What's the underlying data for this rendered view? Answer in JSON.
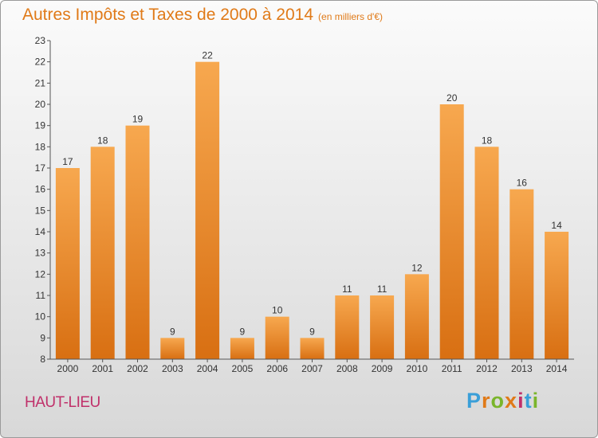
{
  "header": {
    "title": "Autres Impôts et Taxes de 2000 à 2014",
    "subtitle": "(en milliers d'€)"
  },
  "footer": {
    "place": "HAUT-LIEU",
    "logo": "Proxiti",
    "logo_colors": [
      "#3a9fd8",
      "#e07a18",
      "#7ab52b",
      "#e07a18",
      "#c0306a",
      "#3a9fd8",
      "#7ab52b"
    ]
  },
  "colors": {
    "bar_top": "#f7a84f",
    "bar_bottom": "#d86f12",
    "text": "#e07a18",
    "axis": "#555555"
  },
  "chart_data": {
    "type": "bar",
    "categories": [
      "2000",
      "2001",
      "2002",
      "2003",
      "2004",
      "2005",
      "2006",
      "2007",
      "2008",
      "2009",
      "2010",
      "2011",
      "2012",
      "2013",
      "2014"
    ],
    "values": [
      17,
      18,
      19,
      9,
      22,
      9,
      10,
      9,
      11,
      11,
      12,
      20,
      18,
      16,
      14
    ],
    "ylim": [
      8,
      23
    ],
    "yticks": [
      8,
      9,
      10,
      11,
      12,
      13,
      14,
      15,
      16,
      17,
      18,
      19,
      20,
      21,
      22,
      23
    ],
    "grid": false
  }
}
